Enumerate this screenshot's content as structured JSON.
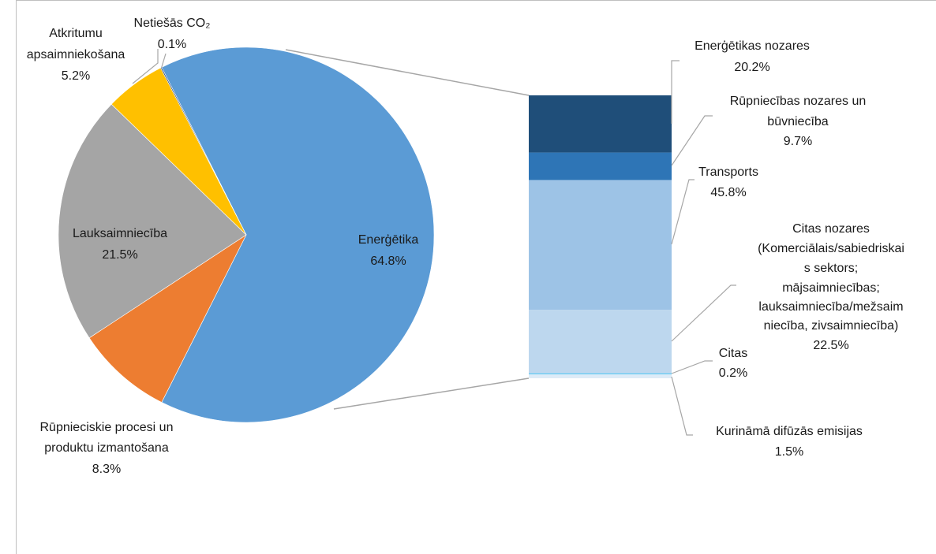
{
  "chart_data": [
    {
      "type": "pie",
      "slices": [
        {
          "name": "Enerģētika",
          "value": 64.8,
          "label": "64.8%",
          "color": "#5b9bd5"
        },
        {
          "name": "Rūpnieciskie procesi un produktu izmantošana",
          "value": 8.3,
          "label": "8.3%",
          "color": "#ed7d31"
        },
        {
          "name": "Lauksaimniecība",
          "value": 21.5,
          "label": "21.5%",
          "color": "#a5a5a5"
        },
        {
          "name": "Atkritumu apsaimniekošana",
          "value": 5.2,
          "label": "5.2%",
          "color": "#ffc000"
        },
        {
          "name": "Netiešās CO₂",
          "value": 0.1,
          "label": "0.1%",
          "color": "#264478"
        }
      ]
    },
    {
      "type": "bar",
      "stacked": true,
      "breakdown_of": "Enerģētika",
      "segments": [
        {
          "name": "Enerģētikas nozares",
          "value": 20.2,
          "label": "20.2%",
          "color": "#1f4e79"
        },
        {
          "name": "Rūpniecības nozares un būvniecība",
          "value": 9.7,
          "label": "9.7%",
          "color": "#2e75b6"
        },
        {
          "name": "Transports",
          "value": 45.8,
          "label": "45.8%",
          "color": "#9dc3e6"
        },
        {
          "name": "Citas nozares (Komerciālais/sabiedriskais sektors; mājsaimniecības; lauksaimniecība/mežsaimniecība, zivsaimniecība)",
          "value": 22.5,
          "label": "22.5%",
          "color": "#bdd7ee"
        },
        {
          "name": "Citas",
          "value": 0.2,
          "label": "0.2%",
          "color": "#00b0f0"
        },
        {
          "name": "Kurināmā difūzās emisijas",
          "value": 1.5,
          "label": "1.5%",
          "color": "#ddebf7"
        }
      ]
    }
  ],
  "labels": {
    "pie": {
      "energetika": {
        "name": "Enerģētika",
        "value": "64.8%"
      },
      "rupnieciskie": {
        "line1": "Rūpnieciskie procesi un",
        "line2": "produktu izmantošana",
        "value": "8.3%"
      },
      "lauksaimnieciba": {
        "name": "Lauksaimniecība",
        "value": "21.5%"
      },
      "atkritumu": {
        "line1": "Atkritumu",
        "line2": "apsaimniekošana",
        "value": "5.2%"
      },
      "netiesas": {
        "name": "Netiešās CO₂",
        "value": "0.1%"
      }
    },
    "bar": {
      "energetikas_nozares": {
        "name": "Enerģētikas nozares",
        "value": "20.2%"
      },
      "rupniecibas": {
        "line1": "Rūpniecības nozares un",
        "line2": "būvniecība",
        "value": "9.7%"
      },
      "transports": {
        "name": "Transports",
        "value": "45.8%"
      },
      "citas_nozares": {
        "line1": "Citas nozares",
        "line2": "(Komerciālais/sabiedriskai",
        "line3": "s sektors;",
        "line4": "mājsaimniecības;",
        "line5": "lauksaimniecība/mežsaim",
        "line6": "niecība, zivsaimniecība)",
        "value": "22.5%"
      },
      "citas": {
        "name": "Citas",
        "value": "0.2%"
      },
      "kurinama": {
        "name": "Kurināmā difūzās emisijas",
        "value": "1.5%"
      }
    }
  }
}
